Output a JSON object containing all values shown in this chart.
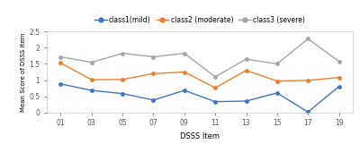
{
  "x_labels": [
    "01",
    "03",
    "05",
    "07",
    "09",
    "11",
    "13",
    "15",
    "17",
    "19"
  ],
  "class1_mild": [
    0.88,
    0.68,
    0.58,
    0.38,
    0.68,
    0.33,
    0.35,
    0.6,
    0.01,
    0.8
  ],
  "class2_moderate": [
    1.53,
    1.01,
    1.02,
    1.2,
    1.25,
    0.76,
    1.3,
    0.97,
    0.99,
    1.08
  ],
  "class3_severe": [
    1.72,
    1.55,
    1.83,
    1.72,
    1.83,
    1.1,
    1.65,
    1.5,
    2.28,
    1.58
  ],
  "color_mild": "#4472C4",
  "color_moderate": "#ED7D31",
  "color_severe": "#A5A5A5",
  "label_mild": "class1(mild)",
  "label_moderate": "class2 (moderate)",
  "label_severe": "class3 (severe)",
  "xlabel": "DSSS Item",
  "ylabel": "Mean Score of DSSS Item",
  "ylim": [
    0,
    2.5
  ],
  "yticks": [
    0,
    0.5,
    1,
    1.5,
    2,
    2.5
  ],
  "background_color": "#ffffff"
}
